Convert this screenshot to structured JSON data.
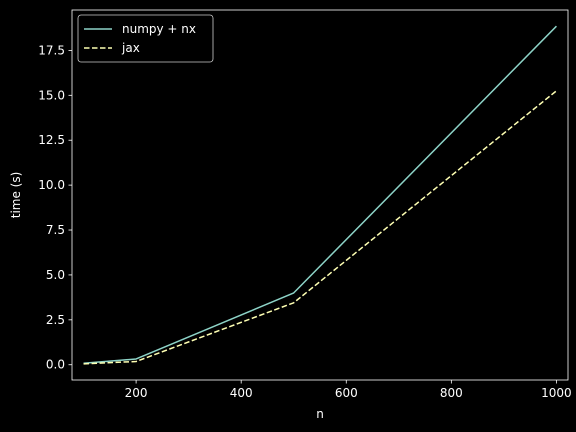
{
  "chart_data": {
    "type": "line",
    "xlabel": "n",
    "ylabel": "time (s)",
    "xlim": [
      78,
      1022
    ],
    "ylim": [
      -0.85,
      19.75
    ],
    "xticks": [
      200,
      400,
      600,
      800,
      1000
    ],
    "yticks": [
      0.0,
      2.5,
      5.0,
      7.5,
      10.0,
      12.5,
      15.0,
      17.5
    ],
    "ytick_labels": [
      "0.0",
      "2.5",
      "5.0",
      "7.5",
      "10.0",
      "12.5",
      "15.0",
      "17.5"
    ],
    "grid": false,
    "legend_position": "upper-left",
    "series": [
      {
        "name": "numpy + nx",
        "color": "#8dd3c7",
        "style": "solid",
        "x": [
          100,
          200,
          500,
          1000
        ],
        "y": [
          0.08,
          0.32,
          4.0,
          18.85
        ]
      },
      {
        "name": "jax",
        "color": "#feffb3",
        "style": "dashed",
        "x": [
          100,
          200,
          500,
          1000
        ],
        "y": [
          0.05,
          0.18,
          3.45,
          15.25
        ]
      }
    ]
  }
}
